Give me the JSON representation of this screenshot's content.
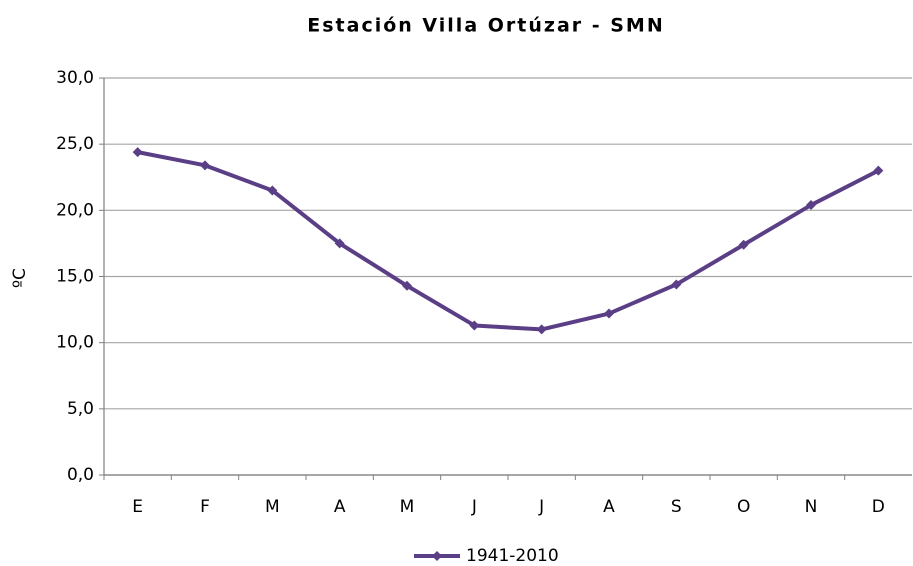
{
  "chart_data": {
    "type": "line",
    "title": "Estación Villa Ortúzar - SMN",
    "y_label": "ºC",
    "categories": [
      "E",
      "F",
      "M",
      "A",
      "M",
      "J",
      "J",
      "A",
      "S",
      "O",
      "N",
      "D"
    ],
    "series": [
      {
        "name": "1941-2010",
        "color": "#5b3f86",
        "values": [
          24.4,
          23.4,
          21.5,
          17.5,
          14.3,
          11.3,
          11.0,
          12.2,
          14.4,
          17.4,
          20.4,
          23.0
        ]
      }
    ],
    "ylim": [
      0,
      30
    ],
    "yticks": [
      {
        "value": 0,
        "label": "0,0"
      },
      {
        "value": 5,
        "label": "5,0"
      },
      {
        "value": 10,
        "label": "10,0"
      },
      {
        "value": 15,
        "label": "15,0"
      },
      {
        "value": 20,
        "label": "20,0"
      },
      {
        "value": 25,
        "label": "25,0"
      },
      {
        "value": 30,
        "label": "30,0"
      }
    ],
    "grid": true,
    "legend": "bottom"
  }
}
